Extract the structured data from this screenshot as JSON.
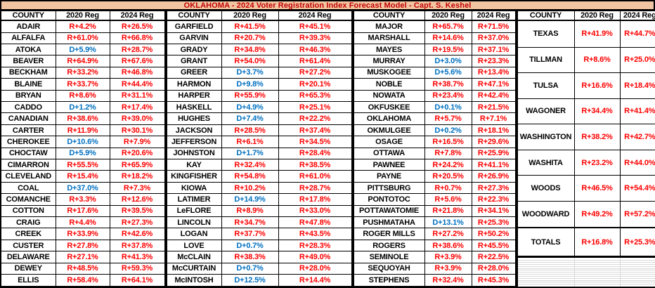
{
  "title": "OKLAHOMA -  2024 Voter Registration Index Forecast Model - Capt. S. Keshel",
  "colors": {
    "title_bg": "#F2C5A2",
    "title_text": "#C00000",
    "republican_value": "#FF0000",
    "democrat_value": "#0070C0"
  },
  "table": {
    "headers": [
      "COUNTY",
      "2020 Reg",
      "2024 Reg"
    ],
    "groups": [
      {
        "rows": [
          [
            "ADAIR",
            "R+4.2%",
            "R+26.5%"
          ],
          [
            "ALFALFA",
            "R+61.0%",
            "R+66.8%"
          ],
          [
            "ATOKA",
            "D+5.9%",
            "R+28.7%"
          ],
          [
            "BEAVER",
            "R+64.9%",
            "R+67.6%"
          ],
          [
            "BECKHAM",
            "R+33.2%",
            "R+46.8%"
          ],
          [
            "BLAINE",
            "R+33.7%",
            "R+44.4%"
          ],
          [
            "BRYAN",
            "R+8.6%",
            "R+31.1%"
          ],
          [
            "CADDO",
            "D+1.2%",
            "R+17.4%"
          ],
          [
            "CANADIAN",
            "R+38.6%",
            "R+39.0%"
          ],
          [
            "CARTER",
            "R+11.9%",
            "R+30.1%"
          ],
          [
            "CHEROKEE",
            "D+10.6%",
            "R+7.9%"
          ],
          [
            "CHOCTAW",
            "D+5.9%",
            "R+20.6%"
          ],
          [
            "CIMARRON",
            "R+55.5%",
            "R+65.9%"
          ],
          [
            "CLEVELAND",
            "R+15.4%",
            "R+18.2%"
          ],
          [
            "COAL",
            "D+37.0%",
            "R+7.3%"
          ],
          [
            "COMANCHE",
            "R+3.3%",
            "R+12.6%"
          ],
          [
            "COTTON",
            "R+17.6%",
            "R+39.5%"
          ],
          [
            "CRAIG",
            "R+4.4%",
            "R+27.3%"
          ],
          [
            "CREEK",
            "R+33.9%",
            "R+42.6%"
          ],
          [
            "CUSTER",
            "R+27.8%",
            "R+37.8%"
          ],
          [
            "DELAWARE",
            "R+27.1%",
            "R+41.3%"
          ],
          [
            "DEWEY",
            "R+48.5%",
            "R+59.3%"
          ],
          [
            "ELLIS",
            "R+58.4%",
            "R+64.1%"
          ]
        ]
      },
      {
        "rows": [
          [
            "GARFIELD",
            "R+41.5%",
            "R+45.1%"
          ],
          [
            "GARVIN",
            "R+20.7%",
            "R+39.3%"
          ],
          [
            "GRADY",
            "R+34.8%",
            "R+46.3%"
          ],
          [
            "GRANT",
            "R+54.0%",
            "R+61.4%"
          ],
          [
            "GREER",
            "D+3.7%",
            "R+27.2%"
          ],
          [
            "HARMON",
            "D+9.8%",
            "R+20.1%"
          ],
          [
            "HARPER",
            "R+55.9%",
            "R+65.3%"
          ],
          [
            "HASKELL",
            "D+4.9%",
            "R+25.1%"
          ],
          [
            "HUGHES",
            "D+7.4%",
            "R+22.2%"
          ],
          [
            "JACKSON",
            "R+28.5%",
            "R+37.4%"
          ],
          [
            "JEFFERSON",
            "R+6.1%",
            "R+34.5%"
          ],
          [
            "JOHNSTON",
            "D+1.7%",
            "R+28.4%"
          ],
          [
            "KAY",
            "R+32.4%",
            "R+38.5%"
          ],
          [
            "KINGFISHER",
            "R+54.8%",
            "R+61.0%"
          ],
          [
            "KIOWA",
            "R+10.2%",
            "R+28.7%"
          ],
          [
            "LATIMER",
            "D+14.9%",
            "R+17.8%"
          ],
          [
            "LeFLORE",
            "R+8.9%",
            "R+33.0%"
          ],
          [
            "LINCOLN",
            "R+34.7%",
            "R+47.8%"
          ],
          [
            "LOGAN",
            "R+37.7%",
            "R+43.5%"
          ],
          [
            "LOVE",
            "D+0.7%",
            "R+28.3%"
          ],
          [
            "McCLAIN",
            "R+38.3%",
            "R+49.0%"
          ],
          [
            "McCURTAIN",
            "D+0.7%",
            "R+28.0%"
          ],
          [
            "McINTOSH",
            "D+12.5%",
            "R+14.4%"
          ]
        ]
      },
      {
        "rows": [
          [
            "MAJOR",
            "R+65.7%",
            "R+71.5%"
          ],
          [
            "MARSHALL",
            "R+14.6%",
            "R+37.0%"
          ],
          [
            "MAYES",
            "R+19.5%",
            "R+37.1%"
          ],
          [
            "MURRAY",
            "D+3.0%",
            "R+23.3%"
          ],
          [
            "MUSKOGEE",
            "D+5.6%",
            "R+13.4%"
          ],
          [
            "NOBLE",
            "R+38.7%",
            "R+47.1%"
          ],
          [
            "NOWATA",
            "R+23.4%",
            "R+42.4%"
          ],
          [
            "OKFUSKEE",
            "D+0.1%",
            "R+21.5%"
          ],
          [
            "OKLAHOMA",
            "R+5.7%",
            "R+7.1%"
          ],
          [
            "OKMULGEE",
            "D+0.2%",
            "R+18.1%"
          ],
          [
            "OSAGE",
            "R+16.5%",
            "R+29.6%"
          ],
          [
            "OTTAWA",
            "R+7.8%",
            "R+25.9%"
          ],
          [
            "PAWNEE",
            "R+24.2%",
            "R+41.1%"
          ],
          [
            "PAYNE",
            "R+20.5%",
            "R+26.9%"
          ],
          [
            "PITTSBURG",
            "R+0.7%",
            "R+27.3%"
          ],
          [
            "PONTOTOC",
            "R+5.6%",
            "R+22.3%"
          ],
          [
            "POTTAWATOMIE",
            "R+21.8%",
            "R+34.1%"
          ],
          [
            "PUSHMATAHA",
            "D+13.1%",
            "R+25.3%"
          ],
          [
            "ROGER MILLS",
            "R+27.2%",
            "R+50.2%"
          ],
          [
            "ROGERS",
            "R+38.6%",
            "R+45.5%"
          ],
          [
            "SEMINOLE",
            "R+3.9%",
            "R+22.5%"
          ],
          [
            "SEQUOYAH",
            "R+3.9%",
            "R+28.0%"
          ],
          [
            "STEPHENS",
            "R+32.4%",
            "R+45.3%"
          ]
        ]
      },
      {
        "rows": [
          [
            "TEXAS",
            "R+41.9%",
            "R+44.7%"
          ],
          [
            "TILLMAN",
            "R+8.6%",
            "R+25.0%"
          ],
          [
            "TULSA",
            "R+16.6%",
            "R+18.4%"
          ],
          [
            "WAGONER",
            "R+34.4%",
            "R+41.4%"
          ],
          [
            "WASHINGTON",
            "R+38.2%",
            "R+42.7%"
          ],
          [
            "WASHITA",
            "R+23.2%",
            "R+44.0%"
          ],
          [
            "WOODS",
            "R+46.5%",
            "R+54.4%"
          ],
          [
            "WOODWARD",
            "R+49.2%",
            "R+57.2%"
          ]
        ]
      }
    ],
    "totals": {
      "label": "TOTALS",
      "reg_2020": "R+16.8%",
      "reg_2024": "R+25.3%"
    },
    "empty_row_count": 14
  }
}
